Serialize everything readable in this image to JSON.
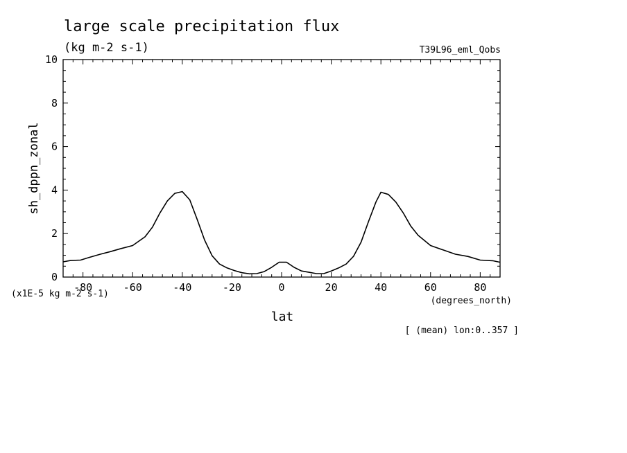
{
  "chart_data": {
    "type": "line",
    "title": "large scale precipitation flux",
    "subtitle": "(kg m-2 s-1)",
    "run_label": "T39L96_eml_Qobs",
    "xlabel": "lat",
    "xunits": "(degrees_north)",
    "ylabel": "sh_dppn_zonal",
    "yscale_note": "(x1E-5 kg m-2 s-1)",
    "footer": "[ (mean) lon:0..357 ]",
    "xlim": [
      -88,
      88
    ],
    "ylim": [
      0,
      10
    ],
    "x_ticks": [
      "-80",
      "-60",
      "-40",
      "-20",
      "0",
      "20",
      "40",
      "60",
      "80"
    ],
    "y_ticks": [
      "0",
      "2",
      "4",
      "6",
      "8",
      "10"
    ],
    "x_tick_values": [
      -80,
      -60,
      -40,
      -20,
      0,
      20,
      40,
      60,
      80
    ],
    "y_tick_values": [
      0,
      2,
      4,
      6,
      8,
      10
    ],
    "grid": false,
    "series": [
      {
        "x": [
          -88,
          -85,
          -81,
          -77,
          -73,
          -69,
          -65,
          -60,
          -55,
          -52,
          -49,
          -46,
          -43,
          -40,
          -37,
          -34,
          -31,
          -28,
          -25,
          -22,
          -19,
          -16,
          -13,
          -10,
          -7,
          -4,
          -1,
          2,
          5,
          8,
          11,
          14,
          17,
          20,
          23,
          26,
          29,
          32,
          35,
          38,
          40,
          43,
          46,
          49,
          52,
          55,
          60,
          65,
          70,
          75,
          80,
          85,
          88
        ],
        "y": [
          0.7,
          0.76,
          0.78,
          0.92,
          1.05,
          1.17,
          1.3,
          1.45,
          1.85,
          2.3,
          2.95,
          3.5,
          3.85,
          3.93,
          3.55,
          2.65,
          1.7,
          0.98,
          0.6,
          0.42,
          0.3,
          0.2,
          0.15,
          0.16,
          0.25,
          0.45,
          0.68,
          0.68,
          0.45,
          0.28,
          0.22,
          0.16,
          0.16,
          0.28,
          0.42,
          0.6,
          0.96,
          1.6,
          2.55,
          3.45,
          3.9,
          3.8,
          3.45,
          2.95,
          2.35,
          1.92,
          1.45,
          1.25,
          1.05,
          0.95,
          0.78,
          0.75,
          0.68
        ]
      }
    ]
  }
}
